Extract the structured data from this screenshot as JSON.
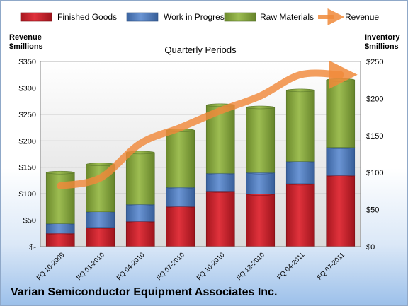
{
  "company": "Varian Semiconductor Equipment Associates Inc.",
  "chart_data": {
    "type": "bar",
    "title": "Quarterly Periods",
    "stacked": true,
    "categories": [
      "FQ 10-2009",
      "FQ 01-2010",
      "FQ 04-2010",
      "FQ 07-2010",
      "FQ 10-2010",
      "FQ 12-2010",
      "FQ 04-2011",
      "FQ 07-2011"
    ],
    "series": [
      {
        "name": "Finished Goods",
        "axis": "right",
        "color": "#d01f2a",
        "values": [
          18,
          26,
          34,
          54,
          75,
          71,
          85,
          96
        ]
      },
      {
        "name": "Work in Progress",
        "axis": "right",
        "color": "#4f7ec5",
        "values": [
          13,
          21,
          23,
          26,
          24,
          29,
          30,
          38
        ]
      },
      {
        "name": "Raw Materials",
        "axis": "right",
        "color": "#8aab3f",
        "values": [
          69,
          64,
          70,
          77,
          92,
          88,
          96,
          91
        ]
      }
    ],
    "line": {
      "name": "Revenue",
      "axis": "left",
      "color": "#f0893a",
      "values": [
        115,
        130,
        195,
        225,
        257,
        285,
        325,
        325
      ]
    },
    "left_axis": {
      "label_line1": "Revenue",
      "label_line2": "$millions",
      "min": 0,
      "max": 350,
      "ticks": [
        "$-",
        "$50",
        "$100",
        "$150",
        "$200",
        "$250",
        "$300",
        "$350"
      ]
    },
    "right_axis": {
      "label_line1": "Inventory",
      "label_line2": "$millions",
      "min": 0,
      "max": 250,
      "ticks": [
        "$0",
        "$50",
        "$100",
        "$150",
        "$200",
        "$250"
      ]
    },
    "grid": true,
    "legend_position": "top"
  }
}
